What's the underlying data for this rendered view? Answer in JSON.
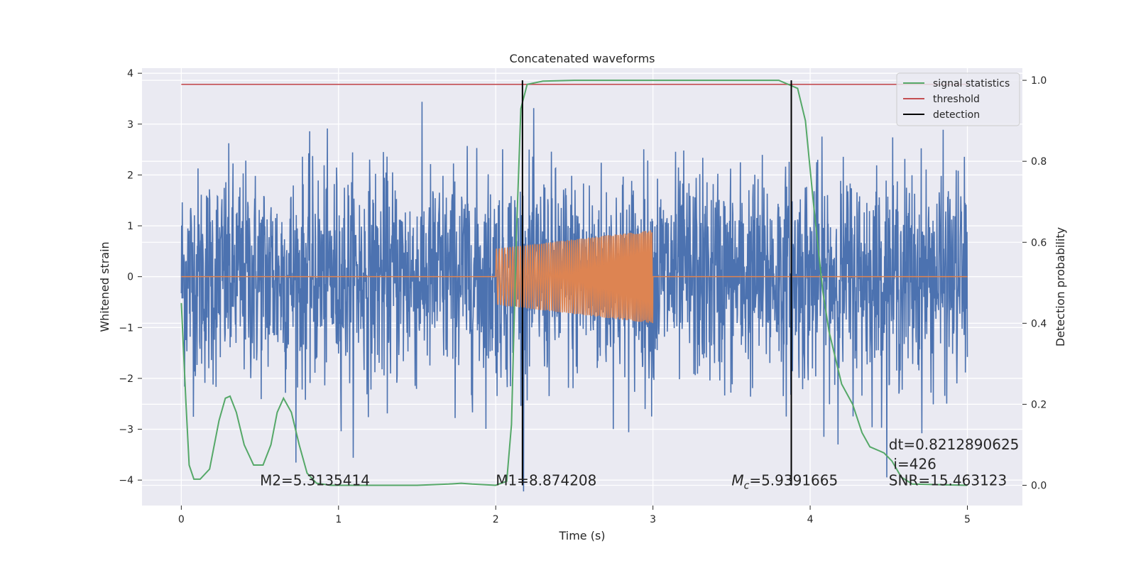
{
  "chart_data": {
    "type": "line",
    "title": "Concatenated waveforms",
    "xlabel": "Time (s)",
    "ylabel_left": "Whitened strain",
    "ylabel_right": "Detection probability",
    "xlim": [
      -0.25,
      5.35
    ],
    "ylim_left": [
      -4.5,
      4.1
    ],
    "ylim_right": [
      -0.05,
      1.03
    ],
    "xticks": [
      0,
      1,
      2,
      3,
      4,
      5
    ],
    "yticks_left": [
      4,
      3,
      2,
      1,
      0,
      -1,
      -2,
      -3,
      -4
    ],
    "yticks_right": [
      1.0,
      0.8,
      0.6,
      0.4,
      0.2,
      0.0
    ],
    "xtick_labels": [
      "0",
      "1",
      "2",
      "3",
      "4",
      "5"
    ],
    "ytick_labels_left": [
      "4",
      "3",
      "2",
      "1",
      "0",
      "−1",
      "−2",
      "−3",
      "−4"
    ],
    "ytick_labels_right": [
      "1.0",
      "0.8",
      "0.6",
      "0.4",
      "0.2",
      "0.0"
    ],
    "grid": true,
    "legend_position": "top-right",
    "colors": {
      "background": "#eaeaf2",
      "strain": "#4c72b0",
      "waveform": "#dd8452",
      "signal_statistics": "#55a868",
      "threshold": "#c44e52",
      "detection": "#000000"
    },
    "series": [
      {
        "name": "signal statistics",
        "axis": "right",
        "x": [
          0.0,
          0.03,
          0.05,
          0.08,
          0.12,
          0.18,
          0.24,
          0.28,
          0.31,
          0.35,
          0.4,
          0.46,
          0.52,
          0.57,
          0.61,
          0.65,
          0.7,
          0.75,
          0.8,
          0.86,
          0.95,
          1.2,
          1.5,
          1.7,
          1.78,
          1.85,
          2.0,
          2.07,
          2.1,
          2.13,
          2.16,
          2.2,
          2.3,
          2.5,
          3.0,
          3.5,
          3.8,
          3.92,
          3.97,
          4.02,
          4.08,
          4.12,
          4.2,
          4.27,
          4.33,
          4.38,
          4.44,
          4.47,
          4.52,
          4.58,
          4.65,
          5.0
        ],
        "y": [
          0.45,
          0.2,
          0.05,
          0.015,
          0.015,
          0.04,
          0.16,
          0.215,
          0.22,
          0.18,
          0.1,
          0.05,
          0.05,
          0.1,
          0.18,
          0.215,
          0.18,
          0.1,
          0.03,
          0.005,
          0.0,
          0.0,
          0.0,
          0.003,
          0.005,
          0.003,
          0.0,
          0.01,
          0.15,
          0.6,
          0.93,
          0.99,
          0.998,
          1.0,
          1.0,
          1.0,
          1.0,
          0.98,
          0.9,
          0.7,
          0.48,
          0.38,
          0.25,
          0.2,
          0.13,
          0.095,
          0.085,
          0.08,
          0.06,
          0.02,
          0.003,
          0.0
        ]
      },
      {
        "name": "threshold",
        "axis": "right",
        "x": [
          0,
          5
        ],
        "y": [
          0.99,
          0.99
        ]
      },
      {
        "name": "detection",
        "axis": "right",
        "x": [
          2.17,
          3.88
        ],
        "y": [
          1.0,
          1.0
        ]
      }
    ],
    "strain_noise": {
      "axis": "left",
      "x_range": [
        0,
        5
      ],
      "typical_amplitude": 1.8,
      "peak_amplitude": 3.8
    },
    "injected_waveform": {
      "axis": "left",
      "x_start": 2.0,
      "x_end": 3.0,
      "amplitude_start": 0.55,
      "amplitude_end": 0.92
    },
    "annotations": [
      {
        "text": "M2=5.3135414",
        "x": 0.5,
        "y": -4.1
      },
      {
        "text": "M1=8.874208",
        "x": 2.0,
        "y": -4.1
      },
      {
        "text_main": "M",
        "text_sub": "c",
        "text_rest": "=5.9391665",
        "x": 3.5,
        "y": -4.1
      },
      {
        "text": "dt=0.8212890625",
        "x": 4.5,
        "y": -3.4
      },
      {
        "text": "i=426",
        "x": 4.53,
        "y": -3.78
      },
      {
        "text": "SNR=15.463123",
        "x": 4.5,
        "y": -4.1
      }
    ]
  }
}
